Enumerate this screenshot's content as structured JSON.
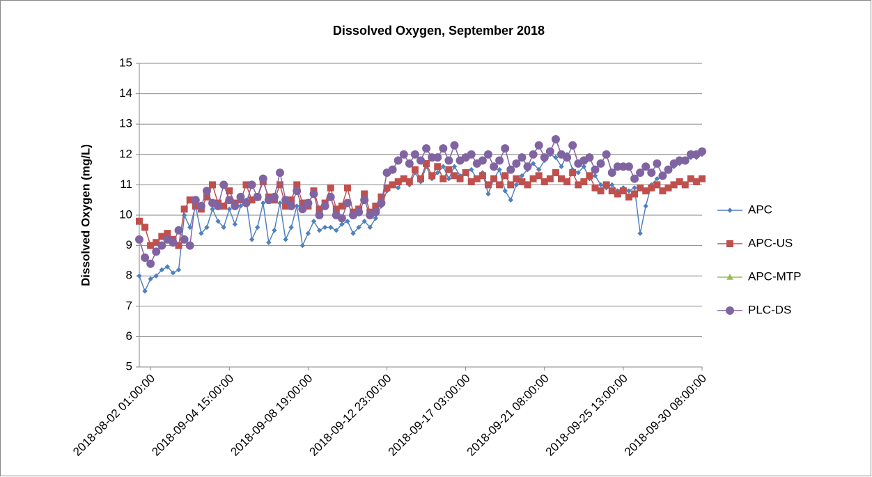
{
  "chart_data": {
    "type": "line",
    "title": "Dissolved Oxygen, September 2018",
    "y_label": "Dissolved Oxygen (mg/L)",
    "categories": [
      null,
      null,
      "2018-08-02 01:00:00",
      null,
      null,
      null,
      null,
      null,
      null,
      null,
      null,
      null,
      null,
      null,
      null,
      null,
      "2018-09-04 15:00:00",
      null,
      null,
      null,
      null,
      null,
      null,
      null,
      null,
      null,
      null,
      null,
      null,
      null,
      "2018-09-08 19:00:00",
      null,
      null,
      null,
      null,
      null,
      null,
      null,
      null,
      null,
      null,
      null,
      null,
      null,
      "2018-09-12 23:00:00",
      null,
      null,
      null,
      null,
      null,
      null,
      null,
      null,
      null,
      null,
      null,
      null,
      null,
      "2018-09-17 03:00:00",
      null,
      null,
      null,
      null,
      null,
      null,
      null,
      null,
      null,
      null,
      null,
      null,
      null,
      "2018-09-21 08:00:00",
      null,
      null,
      null,
      null,
      null,
      null,
      null,
      null,
      null,
      null,
      null,
      null,
      null,
      "2018-09-25 13:00:00",
      null,
      null,
      null,
      null,
      null,
      null,
      null,
      null,
      null,
      null,
      null,
      null,
      null,
      "2018-09-30 08:00:00"
    ],
    "series": [
      {
        "name": "APC",
        "color": "#4f81bd",
        "marker": "diamond",
        "values": [
          8.0,
          7.5,
          7.9,
          8.0,
          8.2,
          8.3,
          8.1,
          8.2,
          10.0,
          9.6,
          10.3,
          9.4,
          9.6,
          10.2,
          9.8,
          9.6,
          10.2,
          9.7,
          10.3,
          10.5,
          9.2,
          9.6,
          10.4,
          9.1,
          9.5,
          10.4,
          9.2,
          9.6,
          10.3,
          9.0,
          9.4,
          9.8,
          9.5,
          9.6,
          9.6,
          9.5,
          9.7,
          9.8,
          9.4,
          9.6,
          9.8,
          9.6,
          9.9,
          10.3,
          10.8,
          11.0,
          10.9,
          11.2,
          11.0,
          11.4,
          11.1,
          11.6,
          11.2,
          11.4,
          11.6,
          11.2,
          11.6,
          11.3,
          11.4,
          11.5,
          11.2,
          11.4,
          10.7,
          11.2,
          11.5,
          10.8,
          10.5,
          11.0,
          11.3,
          11.5,
          11.7,
          11.5,
          11.8,
          12.0,
          11.9,
          11.6,
          12.0,
          11.5,
          11.4,
          11.6,
          11.2,
          11.3,
          11.0,
          10.9,
          11.0,
          10.8,
          10.9,
          10.8,
          10.9,
          9.4,
          10.3,
          11.0,
          11.2,
          11.3,
          11.5,
          11.6,
          11.7,
          11.8,
          11.9,
          11.9,
          12.0
        ]
      },
      {
        "name": "APC-US",
        "color": "#c0504d",
        "marker": "square",
        "values": [
          9.8,
          9.6,
          9.0,
          9.1,
          9.3,
          9.4,
          9.2,
          9.0,
          10.2,
          10.5,
          10.3,
          10.2,
          10.6,
          11.0,
          10.4,
          10.3,
          10.8,
          10.4,
          10.5,
          11.0,
          10.5,
          10.6,
          11.1,
          10.6,
          10.5,
          11.0,
          10.3,
          10.5,
          11.0,
          10.4,
          10.3,
          10.8,
          10.2,
          10.4,
          10.9,
          10.2,
          10.3,
          10.9,
          10.1,
          10.2,
          10.7,
          10.1,
          10.3,
          10.6,
          10.9,
          11.0,
          11.1,
          11.2,
          11.1,
          11.5,
          11.2,
          11.7,
          11.3,
          11.6,
          11.2,
          11.5,
          11.3,
          11.2,
          11.4,
          11.1,
          11.2,
          11.3,
          11.0,
          11.2,
          11.0,
          11.3,
          11.0,
          11.2,
          11.1,
          11.0,
          11.2,
          11.3,
          11.1,
          11.2,
          11.4,
          11.2,
          11.1,
          11.4,
          11.0,
          11.1,
          11.3,
          10.9,
          10.8,
          11.0,
          10.8,
          10.7,
          10.8,
          10.6,
          10.7,
          10.9,
          10.8,
          10.9,
          11.0,
          10.8,
          10.9,
          11.0,
          11.1,
          11.0,
          11.2,
          11.1,
          11.2
        ]
      },
      {
        "name": "APC-MTP",
        "color": "#9bbb59",
        "marker": "triangle",
        "values": [
          null,
          null,
          null,
          null,
          null,
          null,
          null,
          null,
          null,
          null,
          null,
          null,
          null,
          null,
          null,
          null,
          null,
          null,
          null,
          null,
          null,
          null,
          null,
          null,
          null,
          null,
          null,
          null,
          null,
          null,
          null,
          null,
          null,
          null,
          null,
          null,
          null,
          null,
          null,
          null,
          null,
          null,
          null,
          null,
          null,
          null,
          null,
          null,
          null,
          null,
          null,
          null,
          null,
          null,
          null,
          null,
          null,
          null,
          null,
          null,
          null,
          null,
          null,
          null,
          null,
          null,
          null,
          null,
          null,
          null,
          null,
          null,
          null,
          null,
          null,
          null,
          null,
          null,
          null,
          null,
          null,
          null,
          null,
          null,
          null,
          null,
          null,
          null,
          null,
          null,
          null,
          null,
          null,
          null,
          null,
          null,
          null,
          null,
          null,
          null,
          null
        ]
      },
      {
        "name": "PLC-DS",
        "color": "#8064a2",
        "marker": "circle",
        "values": [
          9.2,
          8.6,
          8.4,
          8.8,
          9.0,
          9.2,
          9.1,
          9.5,
          9.2,
          9.0,
          10.5,
          10.3,
          10.8,
          10.4,
          10.3,
          11.0,
          10.5,
          10.3,
          10.6,
          10.4,
          11.0,
          10.6,
          11.2,
          10.5,
          10.6,
          11.4,
          10.5,
          10.3,
          10.8,
          10.2,
          10.4,
          10.7,
          10.0,
          10.3,
          10.6,
          10.0,
          9.9,
          10.4,
          10.0,
          10.1,
          10.5,
          10.0,
          10.1,
          10.4,
          11.4,
          11.5,
          11.8,
          12.0,
          11.7,
          12.0,
          11.8,
          12.2,
          11.9,
          11.9,
          12.2,
          11.8,
          12.3,
          11.8,
          11.9,
          12.0,
          11.7,
          11.8,
          12.0,
          11.6,
          11.8,
          12.2,
          11.5,
          11.7,
          11.9,
          11.6,
          12.0,
          12.3,
          11.9,
          12.1,
          12.5,
          12.0,
          11.9,
          12.3,
          11.7,
          11.8,
          11.9,
          11.5,
          11.7,
          12.0,
          11.4,
          11.6,
          11.6,
          11.6,
          11.2,
          11.4,
          11.6,
          11.4,
          11.7,
          11.3,
          11.5,
          11.7,
          11.8,
          11.8,
          12.0,
          12.0,
          12.1
        ]
      }
    ],
    "ylim": [
      5,
      15
    ],
    "yticks": [
      5,
      6,
      7,
      8,
      9,
      10,
      11,
      12,
      13,
      14,
      15
    ],
    "grid": true,
    "legend": "right"
  }
}
